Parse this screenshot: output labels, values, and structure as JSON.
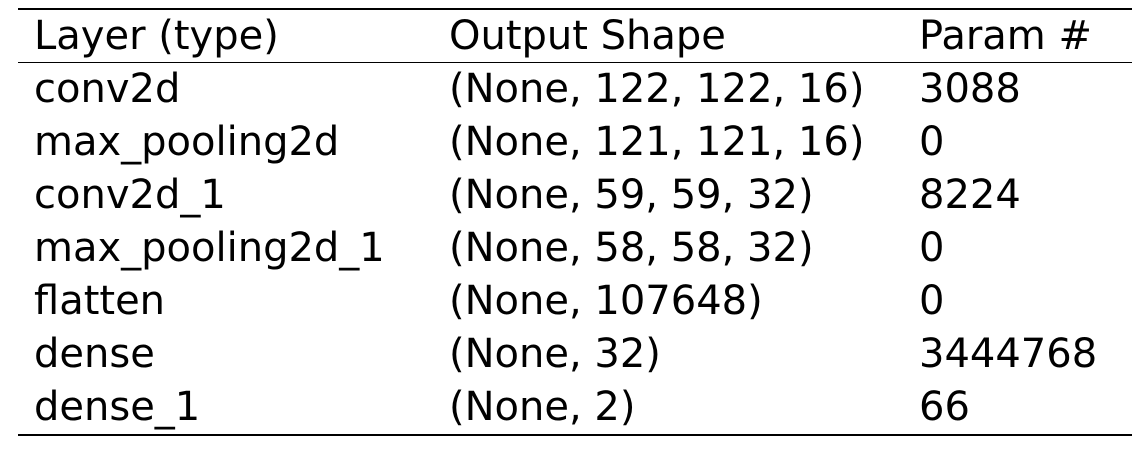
{
  "table": {
    "headers": {
      "layer": "Layer (type)",
      "output_shape": "Output Shape",
      "params": "Param #"
    },
    "rows": [
      {
        "layer": "conv2d",
        "output_shape": "(None, 122, 122, 16)",
        "params": "3088"
      },
      {
        "layer": "max_pooling2d",
        "output_shape": "(None, 121, 121, 16)",
        "params": "0"
      },
      {
        "layer": "conv2d_1",
        "output_shape": "(None, 59, 59, 32)",
        "params": "8224"
      },
      {
        "layer": "max_pooling2d_1",
        "output_shape": "(None, 58, 58, 32)",
        "params": "0"
      },
      {
        "layer": "flatten",
        "output_shape": "(None, 107648)",
        "params": "0"
      },
      {
        "layer": "dense",
        "output_shape": "(None, 32)",
        "params": "3444768"
      },
      {
        "layer": "dense_1",
        "output_shape": "(None, 2)",
        "params": "66"
      }
    ]
  }
}
